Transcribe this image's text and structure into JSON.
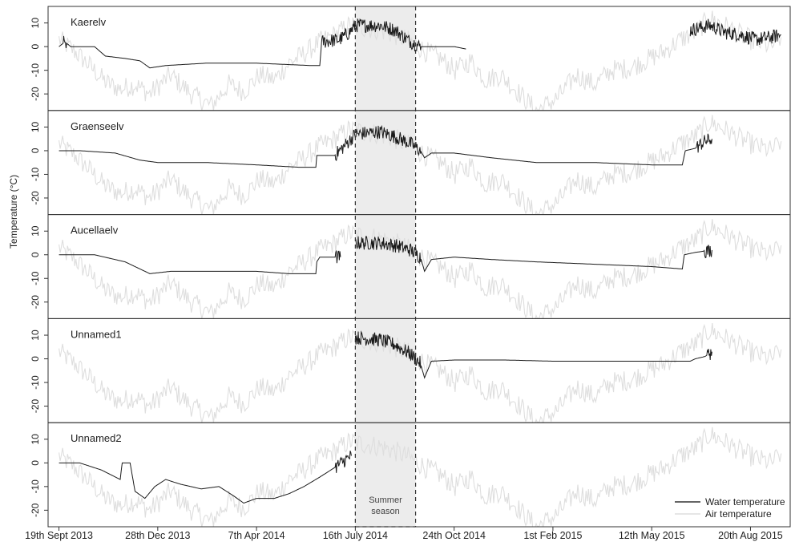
{
  "chart_data": {
    "type": "line",
    "ylabel": "Temperature (°C)",
    "ylim": [
      -27,
      17
    ],
    "yticks": [
      10,
      0,
      -10,
      -20
    ],
    "ytick_labels": [
      "10",
      "0",
      "-10",
      "-20"
    ],
    "xlim": [
      "2013-09-08",
      "2015-09-30"
    ],
    "xticks": [
      {
        "date": "2013-09-19",
        "label": "19th Sept 2013"
      },
      {
        "date": "2013-12-28",
        "label": "28th Dec 2013"
      },
      {
        "date": "2014-04-07",
        "label": "7th Apr 2014"
      },
      {
        "date": "2014-07-16",
        "label": "16th July 2014"
      },
      {
        "date": "2014-10-24",
        "label": "24th Oct 2014"
      },
      {
        "date": "2015-02-01",
        "label": "1st Feb 2015"
      },
      {
        "date": "2015-05-12",
        "label": "12th May 2015"
      },
      {
        "date": "2015-08-20",
        "label": "20th Aug 2015"
      }
    ],
    "summer_season": {
      "start": "2014-07-16",
      "end": "2014-09-15",
      "label_lines": [
        "Summer",
        "season"
      ]
    },
    "legend": {
      "position": "bottom-right",
      "entries": [
        {
          "label": "Water temperature",
          "color": "#333333"
        },
        {
          "label": "Air temperature",
          "color": "#dddddd"
        }
      ]
    },
    "colors": {
      "water": "#1a1a1a",
      "air": "#dedede",
      "summer_fill": "#ececec"
    },
    "air_temperature": [
      [
        "2013-09-19",
        3
      ],
      [
        "2013-10-05",
        -2
      ],
      [
        "2013-10-20",
        -8
      ],
      [
        "2013-11-05",
        -15
      ],
      [
        "2013-11-20",
        -18
      ],
      [
        "2013-12-05",
        -16
      ],
      [
        "2013-12-20",
        -20
      ],
      [
        "2014-01-10",
        -12
      ],
      [
        "2014-01-31",
        -20
      ],
      [
        "2014-02-20",
        -25
      ],
      [
        "2014-03-10",
        -16
      ],
      [
        "2014-03-25",
        -19
      ],
      [
        "2014-04-10",
        -12
      ],
      [
        "2014-04-25",
        -14
      ],
      [
        "2014-05-10",
        -7
      ],
      [
        "2014-05-25",
        -3
      ],
      [
        "2014-06-10",
        2
      ],
      [
        "2014-06-25",
        5
      ],
      [
        "2014-07-10",
        9
      ],
      [
        "2014-07-25",
        8
      ],
      [
        "2014-08-10",
        7
      ],
      [
        "2014-08-25",
        5
      ],
      [
        "2014-09-10",
        2
      ],
      [
        "2014-09-25",
        -2
      ],
      [
        "2014-10-10",
        -5
      ],
      [
        "2014-10-25",
        -10
      ],
      [
        "2014-11-10",
        -6
      ],
      [
        "2014-11-25",
        -14
      ],
      [
        "2014-12-10",
        -12
      ],
      [
        "2014-12-25",
        -18
      ],
      [
        "2015-01-15",
        -27
      ],
      [
        "2015-02-05",
        -22
      ],
      [
        "2015-02-25",
        -12
      ],
      [
        "2015-03-15",
        -16
      ],
      [
        "2015-04-01",
        -10
      ],
      [
        "2015-04-20",
        -9
      ],
      [
        "2015-05-10",
        -5
      ],
      [
        "2015-05-25",
        -2
      ],
      [
        "2015-06-10",
        3
      ],
      [
        "2015-06-25",
        6
      ],
      [
        "2015-07-10",
        12
      ],
      [
        "2015-07-25",
        9
      ],
      [
        "2015-08-10",
        5
      ],
      [
        "2015-08-25",
        2
      ],
      [
        "2015-09-10",
        0
      ],
      [
        "2015-09-20",
        4
      ]
    ],
    "panels": [
      {
        "name": "Kaerelv",
        "water_segments": [
          [
            [
              "2013-09-19",
              0
            ],
            [
              "2013-09-25",
              2
            ],
            [
              "2013-10-01",
              0
            ],
            [
              "2013-10-25",
              0
            ],
            [
              "2013-11-05",
              -4
            ],
            [
              "2013-11-25",
              -5
            ],
            [
              "2013-12-10",
              -6
            ],
            [
              "2013-12-20",
              -9
            ],
            [
              "2014-01-05",
              -8
            ],
            [
              "2014-02-15",
              -7
            ],
            [
              "2014-04-07",
              -7
            ],
            [
              "2014-06-01",
              -8
            ],
            [
              "2014-06-10",
              -8
            ],
            [
              "2014-06-12",
              2
            ],
            [
              "2014-06-30",
              3
            ],
            [
              "2014-07-10",
              6
            ],
            [
              "2014-07-16",
              9
            ],
            [
              "2014-08-10",
              9
            ],
            [
              "2014-08-25",
              7
            ],
            [
              "2014-09-10",
              2
            ],
            [
              "2014-09-20",
              0
            ],
            [
              "2014-10-24",
              0
            ],
            [
              "2014-11-05",
              -1
            ]
          ],
          [
            [
              "2015-06-20",
              7
            ],
            [
              "2015-07-10",
              9
            ],
            [
              "2015-07-25",
              6
            ],
            [
              "2015-08-10",
              5
            ],
            [
              "2015-08-25",
              3
            ],
            [
              "2015-09-10",
              4
            ],
            [
              "2015-09-20",
              5
            ]
          ]
        ]
      },
      {
        "name": "Graenseelv",
        "water_segments": [
          [
            [
              "2013-09-19",
              0
            ],
            [
              "2013-10-10",
              0
            ],
            [
              "2013-11-15",
              -1
            ],
            [
              "2013-12-10",
              -4
            ],
            [
              "2013-12-28",
              -5
            ],
            [
              "2014-02-15",
              -5
            ],
            [
              "2014-04-07",
              -6
            ],
            [
              "2014-05-20",
              -7
            ],
            [
              "2014-06-06",
              -7
            ],
            [
              "2014-06-07",
              -2
            ],
            [
              "2014-06-25",
              -2
            ],
            [
              "2014-07-05",
              2
            ],
            [
              "2014-07-16",
              7
            ],
            [
              "2014-08-10",
              8
            ],
            [
              "2014-08-25",
              6
            ],
            [
              "2014-09-10",
              3
            ],
            [
              "2014-09-20",
              0
            ],
            [
              "2014-09-24",
              -3
            ],
            [
              "2014-10-01",
              -1
            ],
            [
              "2014-10-24",
              -1
            ],
            [
              "2014-12-01",
              -3
            ],
            [
              "2015-01-15",
              -5
            ],
            [
              "2015-03-15",
              -5
            ],
            [
              "2015-05-12",
              -6
            ],
            [
              "2015-06-12",
              -6
            ],
            [
              "2015-06-15",
              0
            ],
            [
              "2015-06-25",
              1
            ],
            [
              "2015-07-05",
              4
            ],
            [
              "2015-07-12",
              5
            ]
          ]
        ]
      },
      {
        "name": "Aucellaelv",
        "water_segments": [
          [
            [
              "2013-09-19",
              0
            ],
            [
              "2013-10-25",
              0
            ],
            [
              "2013-11-25",
              -3
            ],
            [
              "2013-12-20",
              -8
            ],
            [
              "2014-01-10",
              -7
            ],
            [
              "2014-04-07",
              -7
            ],
            [
              "2014-05-10",
              -8
            ],
            [
              "2014-06-06",
              -8
            ],
            [
              "2014-06-07",
              -3
            ],
            [
              "2014-06-10",
              -1
            ],
            [
              "2014-07-01",
              -1
            ]
          ],
          [
            [
              "2014-07-16",
              5
            ],
            [
              "2014-08-10",
              5
            ],
            [
              "2014-08-25",
              4
            ],
            [
              "2014-09-10",
              2
            ],
            [
              "2014-09-20",
              -1
            ],
            [
              "2014-09-24",
              -7
            ],
            [
              "2014-10-01",
              -2
            ],
            [
              "2014-10-24",
              -1
            ],
            [
              "2014-12-01",
              -2
            ],
            [
              "2015-01-15",
              -3
            ],
            [
              "2015-03-15",
              -4
            ],
            [
              "2015-05-12",
              -5
            ],
            [
              "2015-06-12",
              -6
            ],
            [
              "2015-06-14",
              0
            ],
            [
              "2015-06-25",
              1
            ],
            [
              "2015-07-12",
              2
            ]
          ]
        ]
      },
      {
        "name": "Unnamed1",
        "water_segments": [
          [
            [
              "2014-07-16",
              9
            ],
            [
              "2014-08-10",
              8
            ],
            [
              "2014-08-25",
              6
            ],
            [
              "2014-09-10",
              2
            ],
            [
              "2014-09-20",
              -2
            ],
            [
              "2014-09-24",
              -8
            ],
            [
              "2014-10-01",
              -1
            ],
            [
              "2014-10-24",
              -0.5
            ],
            [
              "2014-12-15",
              -0.5
            ],
            [
              "2015-02-01",
              -1
            ],
            [
              "2015-05-12",
              -1
            ],
            [
              "2015-06-20",
              -1
            ],
            [
              "2015-06-25",
              0
            ],
            [
              "2015-07-05",
              1
            ],
            [
              "2015-07-12",
              3
            ]
          ]
        ]
      },
      {
        "name": "Unnamed2",
        "water_segments": [
          [
            [
              "2013-09-19",
              0
            ],
            [
              "2013-10-10",
              0
            ],
            [
              "2013-11-01",
              -3
            ],
            [
              "2013-11-20",
              -7
            ],
            [
              "2013-11-22",
              0
            ],
            [
              "2013-11-30",
              0
            ],
            [
              "2013-12-05",
              -12
            ],
            [
              "2013-12-15",
              -15
            ],
            [
              "2013-12-25",
              -10
            ],
            [
              "2014-01-05",
              -7
            ],
            [
              "2014-01-20",
              -9
            ],
            [
              "2014-02-10",
              -11
            ],
            [
              "2014-02-28",
              -10
            ],
            [
              "2014-03-15",
              -14
            ],
            [
              "2014-03-25",
              -17
            ],
            [
              "2014-04-07",
              -15
            ],
            [
              "2014-04-25",
              -15
            ],
            [
              "2014-05-10",
              -13
            ],
            [
              "2014-05-25",
              -10
            ],
            [
              "2014-06-10",
              -6
            ],
            [
              "2014-06-25",
              -2
            ],
            [
              "2014-07-05",
              1
            ],
            [
              "2014-07-12",
              3
            ]
          ]
        ]
      }
    ]
  }
}
